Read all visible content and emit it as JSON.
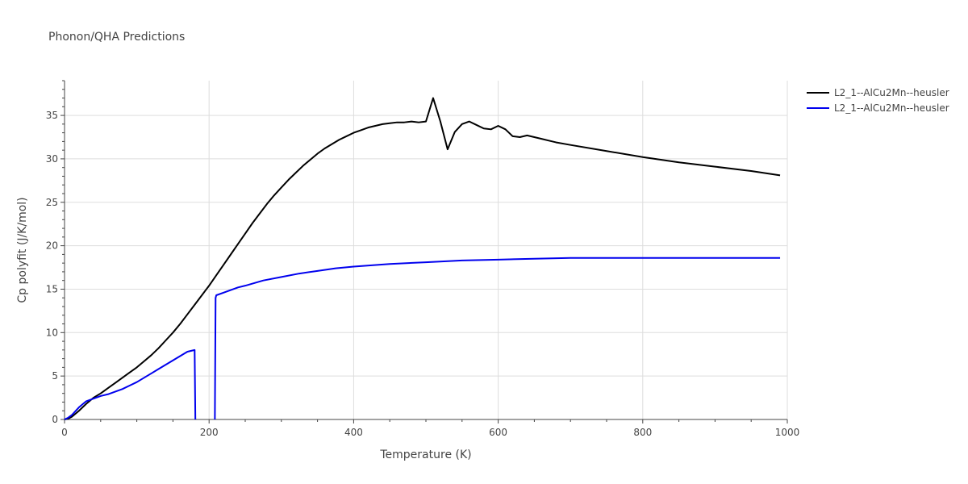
{
  "chart_data": {
    "type": "line",
    "title": "Phonon/QHA Predictions",
    "xlabel": "Temperature (K)",
    "ylabel": "Cp polyfit (J/K/mol)",
    "xlim": [
      0,
      1000
    ],
    "ylim": [
      0,
      39
    ],
    "xticks": [
      0,
      200,
      400,
      600,
      800,
      1000
    ],
    "yticks": [
      0,
      5,
      10,
      15,
      20,
      25,
      30,
      35
    ],
    "grid": true,
    "legend_position": "top-right",
    "series": [
      {
        "name": "L2_1--AlCu2Mn--heusler",
        "color": "#000000",
        "x": [
          0,
          5,
          10,
          20,
          30,
          40,
          50,
          60,
          70,
          80,
          90,
          100,
          110,
          120,
          130,
          140,
          150,
          160,
          170,
          180,
          190,
          200,
          210,
          220,
          230,
          240,
          250,
          260,
          270,
          280,
          290,
          300,
          310,
          320,
          330,
          340,
          350,
          360,
          370,
          380,
          390,
          400,
          410,
          420,
          430,
          440,
          450,
          460,
          470,
          480,
          490,
          500,
          510,
          520,
          530,
          540,
          550,
          560,
          570,
          580,
          590,
          600,
          610,
          620,
          630,
          640,
          650,
          660,
          670,
          680,
          700,
          750,
          800,
          850,
          900,
          950,
          990
        ],
        "y": [
          0,
          0.1,
          0.3,
          1.0,
          1.8,
          2.5,
          3.0,
          3.6,
          4.2,
          4.8,
          5.4,
          6.0,
          6.7,
          7.4,
          8.2,
          9.1,
          10.0,
          11.0,
          12.1,
          13.2,
          14.3,
          15.4,
          16.6,
          17.8,
          19.0,
          20.2,
          21.4,
          22.6,
          23.7,
          24.8,
          25.8,
          26.7,
          27.6,
          28.4,
          29.2,
          29.9,
          30.6,
          31.2,
          31.7,
          32.2,
          32.6,
          33.0,
          33.3,
          33.6,
          33.8,
          34.0,
          34.1,
          34.2,
          34.2,
          34.3,
          34.2,
          34.3,
          37.0,
          34.3,
          31.1,
          33.1,
          34.0,
          34.3,
          33.9,
          33.5,
          33.4,
          33.8,
          33.4,
          32.6,
          32.5,
          32.7,
          32.5,
          32.3,
          32.1,
          31.9,
          31.6,
          30.9,
          30.2,
          29.6,
          29.1,
          28.6,
          28.1
        ]
      },
      {
        "name": "L2_1--AlCu2Mn--heusler",
        "color": "#0000ee",
        "x": [
          0,
          5,
          10,
          20,
          30,
          40,
          50,
          60,
          70,
          80,
          90,
          100,
          110,
          120,
          130,
          140,
          150,
          160,
          170,
          180,
          181,
          null,
          208,
          209,
          210,
          220,
          230,
          240,
          250,
          275,
          300,
          325,
          350,
          375,
          400,
          450,
          500,
          550,
          600,
          650,
          700,
          750,
          800,
          850,
          900,
          950,
          990
        ],
        "y": [
          0,
          0.2,
          0.5,
          1.4,
          2.1,
          2.4,
          2.7,
          2.9,
          3.2,
          3.5,
          3.9,
          4.3,
          4.8,
          5.3,
          5.8,
          6.3,
          6.8,
          7.3,
          7.8,
          8.0,
          0,
          null,
          0,
          14.0,
          14.3,
          14.6,
          14.9,
          15.2,
          15.4,
          16.0,
          16.4,
          16.8,
          17.1,
          17.4,
          17.6,
          17.9,
          18.1,
          18.3,
          18.4,
          18.5,
          18.6,
          18.6,
          18.6,
          18.6,
          18.6,
          18.6,
          18.6
        ]
      }
    ]
  }
}
